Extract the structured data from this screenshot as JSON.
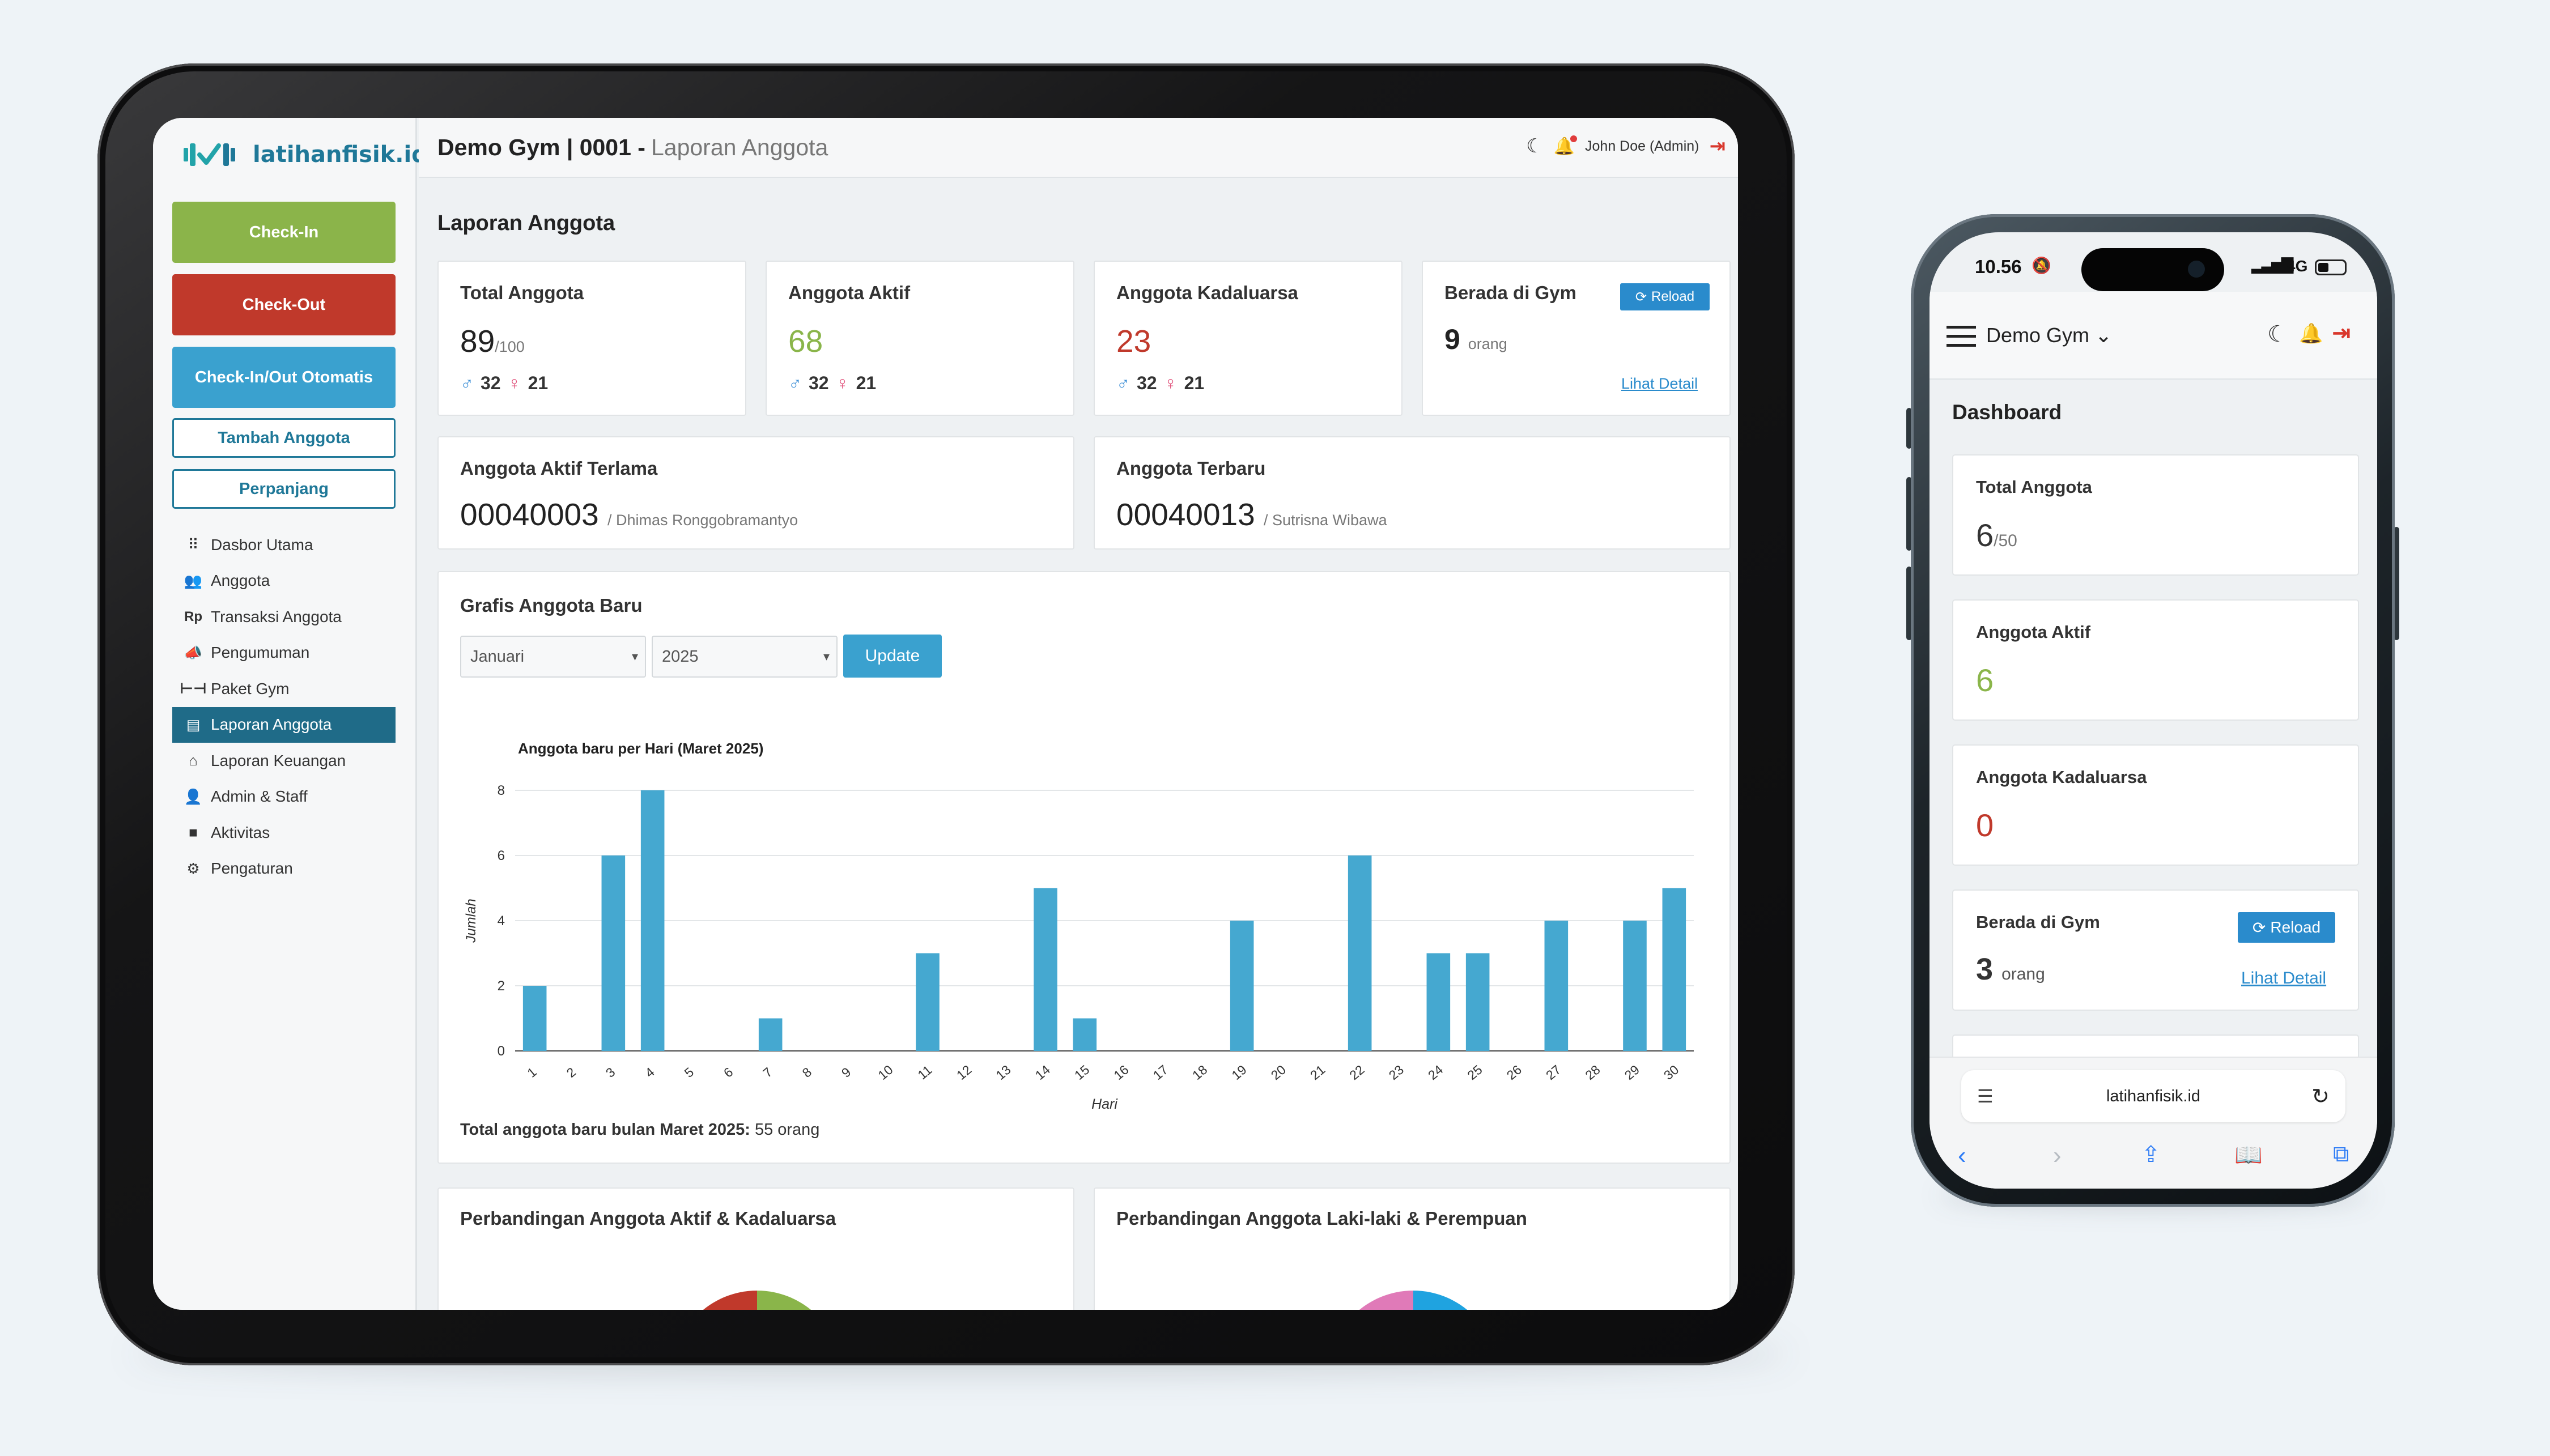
{
  "tablet": {
    "logo_text": "latihanfisik.id",
    "buttons": {
      "checkin": "Check-In",
      "checkout": "Check-Out",
      "auto": "Check-In/Out Otomatis",
      "tambah": "Tambah Anggota",
      "perpanjang": "Perpanjang"
    },
    "menu": [
      {
        "label": "Dasbor Utama",
        "icon": "grid-icon"
      },
      {
        "label": "Anggota",
        "icon": "users-icon"
      },
      {
        "label": "Transaksi Anggota",
        "icon": "rupiah-icon"
      },
      {
        "label": "Pengumuman",
        "icon": "megaphone-icon"
      },
      {
        "label": "Paket Gym",
        "icon": "dumbbell-icon"
      },
      {
        "label": "Laporan Anggota",
        "icon": "report-icon",
        "active": true
      },
      {
        "label": "Laporan Keuangan",
        "icon": "chart-line-icon"
      },
      {
        "label": "Admin & Staff",
        "icon": "user-gear-icon"
      },
      {
        "label": "Aktivitas",
        "icon": "briefcase-icon"
      },
      {
        "label": "Pengaturan",
        "icon": "gears-icon"
      }
    ],
    "topbar": {
      "gym": "Demo Gym | 0001 -",
      "page": "Laporan Anggota",
      "user": "John Doe (Admin)"
    },
    "page_title": "Laporan Anggota",
    "stats": {
      "total": {
        "label": "Total Anggota",
        "value": "89",
        "max": "/100",
        "male": "32",
        "female": "21"
      },
      "aktif": {
        "label": "Anggota Aktif",
        "value": "68",
        "male": "32",
        "female": "21"
      },
      "kadaluarsa": {
        "label": "Anggota Kadaluarsa",
        "value": "23",
        "male": "32",
        "female": "21"
      },
      "gym": {
        "label": "Berada di Gym",
        "value": "9",
        "unit": "orang",
        "reload": "Reload",
        "detail": "Lihat Detail"
      }
    },
    "terlama": {
      "label": "Anggota Aktif Terlama",
      "id": "00040003",
      "name": "/ Dhimas Ronggobramantyo"
    },
    "terbaru": {
      "label": "Anggota Terbaru",
      "id": "00040013",
      "name": "/ Sutrisna Wibawa"
    },
    "grafik": {
      "title": "Grafis Anggota Baru",
      "month": "Januari",
      "year": "2025",
      "update": "Update",
      "total_label": "Total anggota baru bulan Maret 2025:",
      "total_value": "55 orang"
    },
    "bottom_cards": {
      "left": "Perbandingan Anggota Aktif & Kadaluarsa",
      "right": "Perbandingan Anggota Laki-laki & Perempuan"
    }
  },
  "chart_data": {
    "type": "bar",
    "title": "Anggota baru per Hari (Maret 2025)",
    "xlabel": "Hari",
    "ylabel": "Jumlah",
    "ylim": [
      0,
      8
    ],
    "yticks": [
      0,
      2,
      4,
      6,
      8
    ],
    "categories": [
      "1",
      "2",
      "3",
      "4",
      "5",
      "6",
      "7",
      "8",
      "9",
      "10",
      "11",
      "12",
      "13",
      "14",
      "15",
      "16",
      "17",
      "18",
      "19",
      "20",
      "21",
      "22",
      "23",
      "24",
      "25",
      "26",
      "27",
      "28",
      "29",
      "30"
    ],
    "values": [
      2,
      0,
      6,
      8,
      0,
      0,
      1,
      0,
      0,
      0,
      3,
      0,
      0,
      5,
      1,
      0,
      0,
      0,
      4,
      0,
      0,
      6,
      0,
      3,
      3,
      0,
      4,
      0,
      4,
      5
    ],
    "color": "#45a8d0",
    "grid": true
  },
  "phone": {
    "time": "10.56",
    "network": "4G",
    "gym": "Demo Gym",
    "title": "Dashboard",
    "cards": {
      "total": {
        "label": "Total Anggota",
        "value": "6",
        "max": "/50"
      },
      "aktif": {
        "label": "Anggota Aktif",
        "value": "6"
      },
      "kadaluarsa": {
        "label": "Anggota Kadaluarsa",
        "value": "0"
      },
      "gym": {
        "label": "Berada di Gym",
        "value": "3",
        "unit": "orang",
        "reload": "Reload",
        "detail": "Lihat Detail"
      }
    },
    "url": "latihanfisik.id"
  },
  "colors": {
    "brand": "#1f7898",
    "green": "#8ab54a",
    "red": "#c0392b",
    "teal": "#3aa1cf",
    "active_menu": "#1f6b88",
    "bar": "#45a8d0"
  }
}
